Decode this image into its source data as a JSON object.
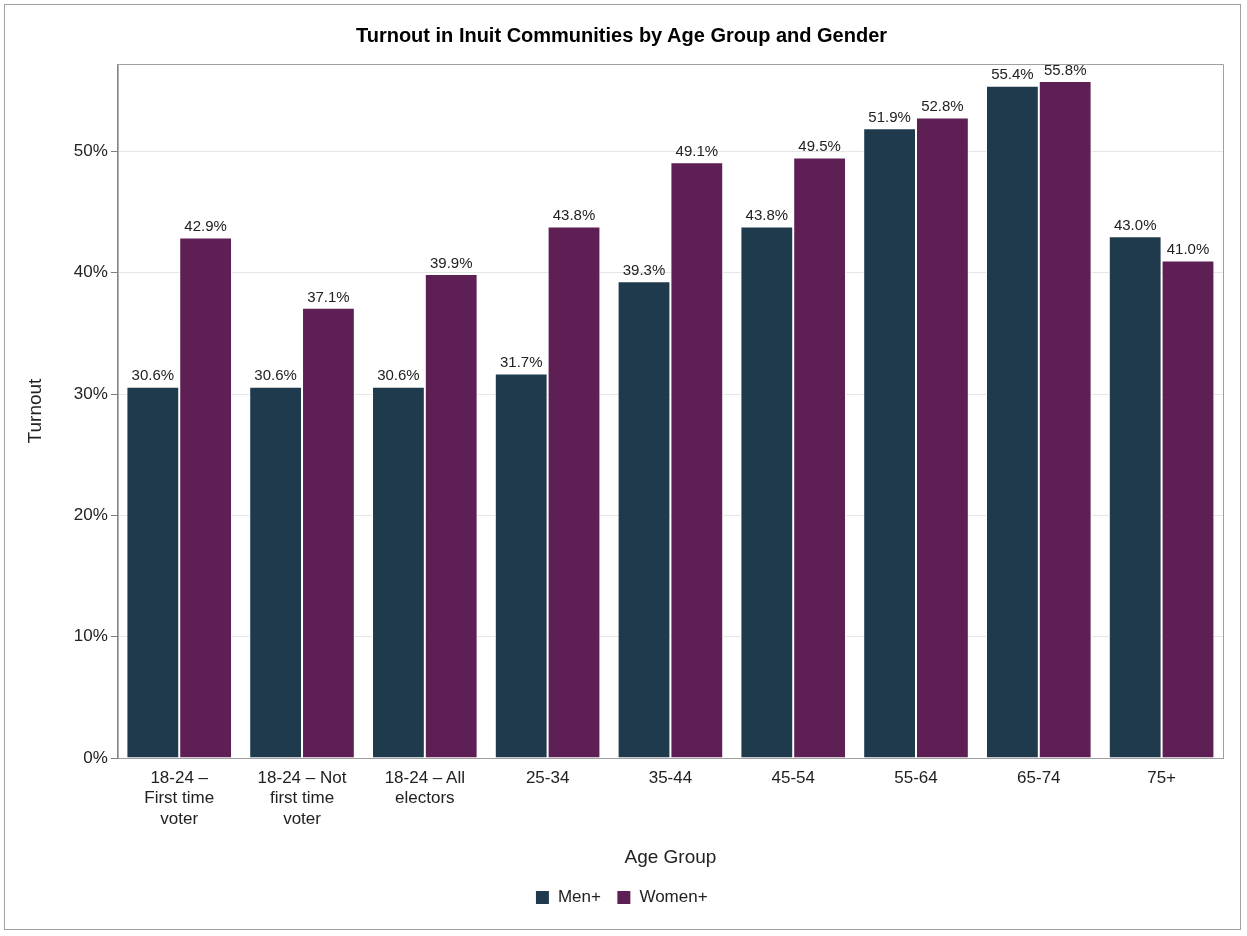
{
  "chart_data": {
    "type": "bar",
    "title": "Turnout in Inuit Communities by Age Group and Gender",
    "xlabel": "Age Group",
    "ylabel": "Turnout",
    "categories": [
      "18-24 – First time voter",
      "18-24 – Not first time voter",
      "18-24 – All electors",
      "25-34",
      "35-44",
      "45-54",
      "55-64",
      "65-74",
      "75+"
    ],
    "series": [
      {
        "name": "Men+",
        "color": "#1f3a4d",
        "values": [
          30.6,
          30.6,
          30.6,
          31.7,
          39.3,
          43.8,
          51.9,
          55.4,
          43.0
        ],
        "value_labels": [
          "30.6%",
          "30.6%",
          "30.6%",
          "31.7%",
          "39.3%",
          "43.8%",
          "51.9%",
          "55.4%",
          "43.0%"
        ]
      },
      {
        "name": "Women+",
        "color": "#5e1f55",
        "values": [
          42.9,
          37.1,
          39.9,
          43.8,
          49.1,
          49.5,
          52.8,
          55.8,
          41.0
        ],
        "value_labels": [
          "42.9%",
          "37.1%",
          "39.9%",
          "43.8%",
          "49.1%",
          "49.5%",
          "52.8%",
          "55.8%",
          "41.0%"
        ]
      }
    ],
    "ylim": [
      0,
      57.2
    ],
    "yticks": [
      {
        "value": 0,
        "label": "0%"
      },
      {
        "value": 10,
        "label": "10%"
      },
      {
        "value": 20,
        "label": "20%"
      },
      {
        "value": 30,
        "label": "30%"
      },
      {
        "value": 40,
        "label": "40%"
      },
      {
        "value": 50,
        "label": "50%"
      }
    ],
    "grid": "y",
    "legend": "bottom"
  }
}
